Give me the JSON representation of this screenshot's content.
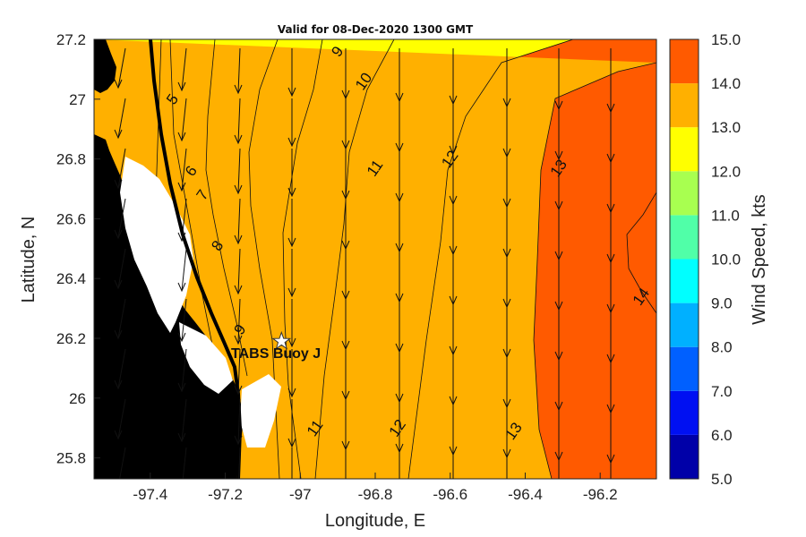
{
  "title": "Valid for 08-Dec-2020 1300 GMT",
  "xlabel": "Longitude, E",
  "ylabel": "Latitude, N",
  "colorbar_label": "Wind Speed, kts",
  "station_label": "TABS Buoy J",
  "x_ticks": [
    "-97.4",
    "-97.2",
    "-97",
    "-96.8",
    "-96.6",
    "-96.4",
    "-96.2"
  ],
  "y_ticks": [
    "25.8",
    "26",
    "26.2",
    "26.4",
    "26.6",
    "26.8",
    "27",
    "27.2"
  ],
  "colorbar_ticks": [
    "5.0",
    "6.0",
    "7.0",
    "8.0",
    "9.0",
    "10.0",
    "11.0",
    "12.0",
    "13.0",
    "14.0",
    "15.0"
  ],
  "contour_labels": [
    {
      "text": "9",
      "lon": -96.89,
      "lat": 27.15
    },
    {
      "text": "10",
      "lon": -96.82,
      "lat": 27.05
    },
    {
      "text": "11",
      "lon": -96.79,
      "lat": 26.76
    },
    {
      "text": "12",
      "lon": -96.59,
      "lat": 26.79
    },
    {
      "text": "13",
      "lon": -96.3,
      "lat": 26.76
    },
    {
      "text": "14",
      "lon": -96.08,
      "lat": 26.33
    },
    {
      "text": "5",
      "lon": -97.33,
      "lat": 26.99
    },
    {
      "text": "6",
      "lon": -97.28,
      "lat": 26.75
    },
    {
      "text": "7",
      "lon": -97.25,
      "lat": 26.67
    },
    {
      "text": "8",
      "lon": -97.21,
      "lat": 26.5
    },
    {
      "text": "9",
      "lon": -97.15,
      "lat": 26.22
    },
    {
      "text": "11",
      "lon": -96.95,
      "lat": 25.89
    },
    {
      "text": "12",
      "lon": -96.73,
      "lat": 25.89
    },
    {
      "text": "13",
      "lon": -96.42,
      "lat": 25.88
    }
  ],
  "colors": {
    "levels": [
      "#0000a8",
      "#0010f2",
      "#0060ff",
      "#00b0ff",
      "#00ffff",
      "#50ffa8",
      "#a8ff50",
      "#ffff00",
      "#ffb000",
      "#ff5a00"
    ],
    "land": "#000000",
    "background": "#ffffff"
  },
  "chart_data": {
    "type": "filled-contour map with wind vectors",
    "xlim": [
      -97.55,
      -96.05
    ],
    "ylim": [
      25.73,
      27.2
    ],
    "color_scale": [
      5.0,
      15.0
    ],
    "contour_levels": [
      5,
      6,
      7,
      8,
      9,
      10,
      11,
      12,
      13,
      14,
      15
    ],
    "wind_direction": "northerly (vectors pointing south)",
    "station": {
      "name": "TABS Buoy J",
      "lon": -97.05,
      "lat": 26.19
    }
  }
}
